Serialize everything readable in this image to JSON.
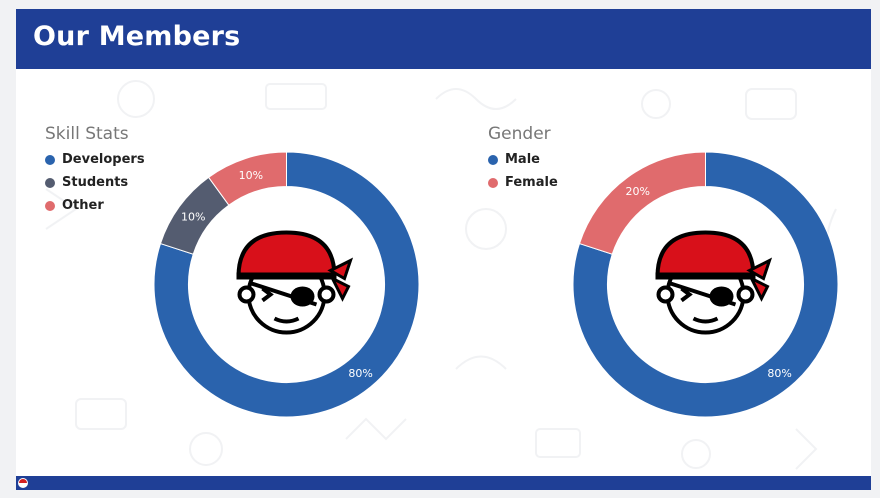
{
  "page": {
    "title": "Our Members"
  },
  "colors": {
    "header": "#1f3f96",
    "blue": "#2a63ad",
    "slate": "#545c70",
    "salmon": "#e06b6d",
    "pirate_red": "#d8101a"
  },
  "mascot_icon": "pirate-face-icon",
  "chart_data": [
    {
      "type": "pie",
      "title": "Skill Stats",
      "donut": true,
      "legend_position": "top-left",
      "series": [
        {
          "name": "Developers",
          "value": 80,
          "label": "80%",
          "color": "#2a63ad"
        },
        {
          "name": "Students",
          "value": 10,
          "label": "10%",
          "color": "#545c70"
        },
        {
          "name": "Other",
          "value": 10,
          "label": "10%",
          "color": "#e06b6d"
        }
      ]
    },
    {
      "type": "pie",
      "title": "Gender",
      "donut": true,
      "legend_position": "top-left",
      "series": [
        {
          "name": "Male",
          "value": 80,
          "label": "80%",
          "color": "#2a63ad"
        },
        {
          "name": "Female",
          "value": 20,
          "label": "20%",
          "color": "#e06b6d"
        }
      ]
    }
  ]
}
